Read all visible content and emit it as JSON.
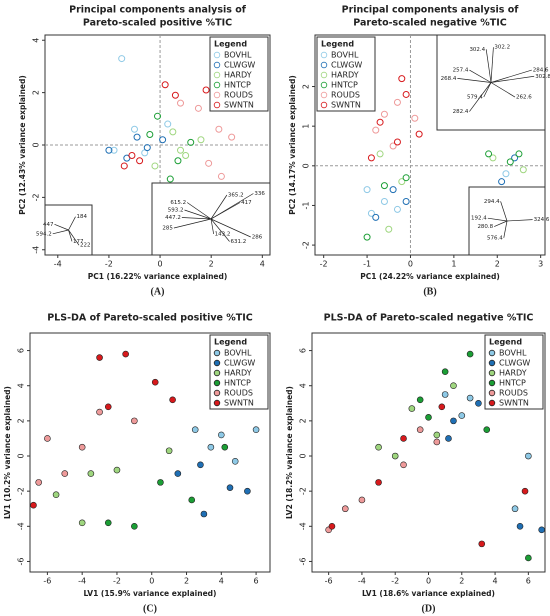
{
  "chart_data": [
    {
      "type": "scatter",
      "panel_label": "(A)",
      "title": [
        "Principal components analysis of",
        "Pareto-scaled positive %TIC"
      ],
      "xlabel": "PC1 (16.22% variance explained)",
      "ylabel": "PC2 (12.43% variance explained)",
      "xlim": [
        -4.5,
        4.3
      ],
      "ylim": [
        -4.2,
        4.2
      ],
      "xticks": [
        -4,
        -2,
        0,
        2,
        4
      ],
      "yticks": [
        -4,
        -2,
        0,
        2,
        4
      ],
      "marker": "open",
      "zero_lines": true,
      "legend_title": "Legend",
      "legend": "top-right",
      "series": [
        {
          "name": "BOVHL",
          "color": "#8ec9e6",
          "x": [
            -1.5,
            -1,
            -0.6,
            0.3,
            -1.8
          ],
          "values": [
            3.3,
            0.6,
            -0.3,
            0.8,
            -0.2
          ]
        },
        {
          "name": "CLWGW",
          "color": "#1f6fb4",
          "x": [
            -2,
            -1.3,
            -0.5,
            0.1,
            -0.9
          ],
          "values": [
            -0.2,
            -0.5,
            -0.1,
            0.2,
            0.3
          ]
        },
        {
          "name": "HARDY",
          "color": "#9fd67f",
          "x": [
            0.5,
            1,
            -0.2,
            1.6,
            0.8
          ],
          "values": [
            0.5,
            -0.4,
            -0.8,
            0.2,
            -0.2
          ]
        },
        {
          "name": "HNTCP",
          "color": "#1b9e35",
          "x": [
            -0.1,
            0.7,
            1.2,
            -0.4,
            0.4
          ],
          "values": [
            1.1,
            -0.6,
            0.1,
            0.4,
            -1.3
          ]
        },
        {
          "name": "ROUDS",
          "color": "#ee9a9a",
          "x": [
            1.5,
            2.3,
            1.9,
            0.8,
            2.8,
            2.4
          ],
          "values": [
            1.4,
            0.6,
            -0.7,
            1.6,
            0.3,
            -1.2
          ]
        },
        {
          "name": "SWNTN",
          "color": "#d7191c",
          "x": [
            -1.4,
            -0.8,
            0.2,
            1.8,
            -1.1,
            0.6
          ],
          "values": [
            -0.8,
            -0.6,
            2.3,
            2.1,
            -0.4,
            1.9
          ]
        }
      ],
      "insets": [
        {
          "corner": "bottom-left",
          "loadings": [
            {
              "label": "447",
              "x": -0.8,
              "y": 0.3
            },
            {
              "label": "184",
              "x": 0.4,
              "y": 0.7
            },
            {
              "label": "594.2",
              "x": -0.9,
              "y": -0.2
            },
            {
              "label": "177",
              "x": 0.2,
              "y": -0.6
            },
            {
              "label": "222",
              "x": 0.6,
              "y": -0.8
            }
          ]
        },
        {
          "corner": "bottom-right",
          "loadings": [
            {
              "label": "365.2",
              "x": 0.3,
              "y": 0.8
            },
            {
              "label": "417",
              "x": 0.55,
              "y": 0.55
            },
            {
              "label": "336",
              "x": 0.8,
              "y": 0.85
            },
            {
              "label": "615.2",
              "x": -0.45,
              "y": 0.55
            },
            {
              "label": "593.2",
              "x": -0.5,
              "y": 0.3
            },
            {
              "label": "447.2",
              "x": -0.55,
              "y": 0.05
            },
            {
              "label": "285",
              "x": -0.7,
              "y": -0.3
            },
            {
              "label": "143.2",
              "x": 0.05,
              "y": -0.5
            },
            {
              "label": "631.2",
              "x": 0.35,
              "y": -0.75
            },
            {
              "label": "286",
              "x": 0.75,
              "y": -0.6
            }
          ]
        }
      ]
    },
    {
      "type": "scatter",
      "panel_label": "(B)",
      "title": [
        "Principal components analysis of",
        "Pareto-scaled negative %TIC"
      ],
      "xlabel": "PC1 (24.22% variance explained)",
      "ylabel": "PC2 (14.17% variance explained)",
      "xlim": [
        -2.2,
        3.1
      ],
      "ylim": [
        -2.25,
        3.3
      ],
      "xticks": [
        -2,
        -1,
        0,
        1,
        2,
        3
      ],
      "yticks": [
        -2,
        -1,
        0,
        1,
        2
      ],
      "marker": "open",
      "zero_lines": true,
      "legend_title": "Legend",
      "legend": "top-left",
      "series": [
        {
          "name": "BOVHL",
          "color": "#8ec9e6",
          "x": [
            -0.9,
            -0.6,
            -0.3,
            2.2,
            -1
          ],
          "values": [
            -1.2,
            -0.9,
            -1.1,
            -0.2,
            -0.6
          ]
        },
        {
          "name": "CLWGW",
          "color": "#1f6fb4",
          "x": [
            -0.8,
            -0.4,
            2.4,
            2.1,
            -0.1
          ],
          "values": [
            -1.3,
            -0.6,
            0.2,
            -0.4,
            -0.9
          ]
        },
        {
          "name": "HARDY",
          "color": "#9fd67f",
          "x": [
            -0.7,
            -0.2,
            1.9,
            2.6,
            -0.5
          ],
          "values": [
            0.3,
            -0.4,
            0.2,
            -0.1,
            -1.6
          ]
        },
        {
          "name": "HNTCP",
          "color": "#1b9e35",
          "x": [
            -0.6,
            -0.1,
            1.8,
            2.5,
            -1,
            2.3
          ],
          "values": [
            -0.5,
            -0.3,
            0.3,
            0.3,
            -1.8,
            0.1
          ]
        },
        {
          "name": "ROUDS",
          "color": "#ee9a9a",
          "x": [
            -0.3,
            -0.8,
            -0.4,
            0.1,
            -0.6
          ],
          "values": [
            1.6,
            0.9,
            0.5,
            1.2,
            1.3
          ]
        },
        {
          "name": "SWNTN",
          "color": "#d7191c",
          "x": [
            -0.2,
            -0.7,
            -0.1,
            0.2,
            -0.9,
            -0.3
          ],
          "values": [
            2.2,
            1.1,
            1.8,
            0.8,
            0.2,
            0.6
          ]
        }
      ],
      "insets": [
        {
          "corner": "top-right",
          "loadings": [
            {
              "label": "302.4",
              "x": -0.1,
              "y": 0.8
            },
            {
              "label": "302.2",
              "x": 0.05,
              "y": 0.85
            },
            {
              "label": "284.6",
              "x": 0.85,
              "y": 0.3
            },
            {
              "label": "302.8",
              "x": 0.9,
              "y": 0.15
            },
            {
              "label": "268.4",
              "x": -0.7,
              "y": 0.1
            },
            {
              "label": "257.4",
              "x": -0.45,
              "y": 0.3
            },
            {
              "label": "579.4",
              "x": -0.15,
              "y": -0.35
            },
            {
              "label": "262.6",
              "x": 0.5,
              "y": -0.35
            },
            {
              "label": "282.4",
              "x": -0.45,
              "y": -0.7
            }
          ]
        },
        {
          "corner": "bottom-right",
          "loadings": [
            {
              "label": "294.4",
              "x": -0.2,
              "y": 0.7
            },
            {
              "label": "192.4",
              "x": -0.6,
              "y": 0.1
            },
            {
              "label": "280.8",
              "x": -0.4,
              "y": -0.2
            },
            {
              "label": "324.6",
              "x": 0.8,
              "y": 0.05
            },
            {
              "label": "576.4",
              "x": -0.1,
              "y": -0.6
            }
          ]
        }
      ]
    },
    {
      "type": "scatter",
      "panel_label": "(C)",
      "title": [
        "PLS-DA of Pareto-scaled positive %TIC"
      ],
      "xlabel": "LV1 (15.9% variance explained)",
      "ylabel": "LV1 (10.2% variance explained)",
      "xlim": [
        -7,
        6.8
      ],
      "ylim": [
        -6.6,
        7
      ],
      "xticks": [
        -6,
        -4,
        -2,
        0,
        2,
        4,
        6
      ],
      "yticks": [
        -6,
        -4,
        -2,
        0,
        2,
        4,
        6
      ],
      "marker": "filled",
      "zero_lines": false,
      "legend_title": "Legend",
      "legend": "top-right",
      "series": [
        {
          "name": "BOVHL",
          "color": "#8ec9e6",
          "x": [
            2.5,
            4,
            6,
            3.4,
            4.8
          ],
          "values": [
            1.5,
            1.2,
            1.5,
            0.5,
            -0.3
          ]
        },
        {
          "name": "CLWGW",
          "color": "#1f6fb4",
          "x": [
            3,
            1.5,
            4.5,
            5.5,
            2.8
          ],
          "values": [
            -3.3,
            -1,
            -1.8,
            -2,
            -0.5
          ]
        },
        {
          "name": "HARDY",
          "color": "#9fd67f",
          "x": [
            -4,
            -5.5,
            -3.5,
            -2,
            1
          ],
          "values": [
            -3.8,
            -2.2,
            -1,
            -0.8,
            0.3
          ]
        },
        {
          "name": "HNTCP",
          "color": "#1b9e35",
          "x": [
            -1,
            0.5,
            -2.5,
            4.2,
            2.3
          ],
          "values": [
            -4,
            -1.5,
            -3.8,
            0.5,
            -2.5
          ]
        },
        {
          "name": "ROUDS",
          "color": "#ee9a9a",
          "x": [
            -6,
            -5,
            -3,
            -6.5,
            -4,
            -1
          ],
          "values": [
            1,
            -1,
            2.5,
            -1.5,
            0.5,
            2
          ]
        },
        {
          "name": "SWNTN",
          "color": "#d7191c",
          "x": [
            -1.5,
            -3,
            1.2,
            0.2,
            -2.5,
            -6.8
          ],
          "values": [
            5.8,
            5.6,
            3.2,
            4.2,
            2.8,
            -2.8
          ]
        }
      ]
    },
    {
      "type": "scatter",
      "panel_label": "(D)",
      "title": [
        "PLS-DA of Pareto-scaled negative %TIC"
      ],
      "xlabel": "LV1 (18.6% variance explained)",
      "ylabel": "LV2 (18.2% variance explained)",
      "xlim": [
        -7,
        7
      ],
      "ylim": [
        -6.6,
        7
      ],
      "xticks": [
        -6,
        -4,
        -2,
        0,
        2,
        4,
        6
      ],
      "yticks": [
        -6,
        -4,
        -2,
        0,
        2,
        4,
        6
      ],
      "marker": "filled",
      "zero_lines": false,
      "legend_title": "Legend",
      "legend": "top-right",
      "series": [
        {
          "name": "BOVHL",
          "color": "#8ec9e6",
          "x": [
            1,
            2.5,
            5.2,
            2,
            6
          ],
          "values": [
            3.5,
            3.3,
            -3,
            2.3,
            0
          ]
        },
        {
          "name": "CLWGW",
          "color": "#1f6fb4",
          "x": [
            5.5,
            1.5,
            3,
            6.8,
            1.2
          ],
          "values": [
            -4,
            2,
            3,
            -4.2,
            1
          ]
        },
        {
          "name": "HARDY",
          "color": "#9fd67f",
          "x": [
            -3,
            -1,
            0.5,
            -2,
            1.5
          ],
          "values": [
            0.5,
            2.7,
            1.2,
            0,
            4
          ]
        },
        {
          "name": "HNTCP",
          "color": "#1b9e35",
          "x": [
            2.5,
            0,
            -0.5,
            3.5,
            1,
            6
          ],
          "values": [
            5.8,
            2.2,
            3.2,
            1.5,
            4.8,
            -5.8
          ]
        },
        {
          "name": "ROUDS",
          "color": "#ee9a9a",
          "x": [
            -6,
            -4,
            -5,
            -1.5,
            -0.5,
            0.5
          ],
          "values": [
            -4.2,
            -2.5,
            -3,
            -0.5,
            1.5,
            0.8
          ]
        },
        {
          "name": "SWNTN",
          "color": "#d7191c",
          "x": [
            -5.8,
            -3,
            -1.5,
            0.8,
            3.2,
            5.8
          ],
          "values": [
            -4,
            -1.5,
            1,
            2.8,
            -5,
            -2
          ]
        }
      ]
    }
  ]
}
